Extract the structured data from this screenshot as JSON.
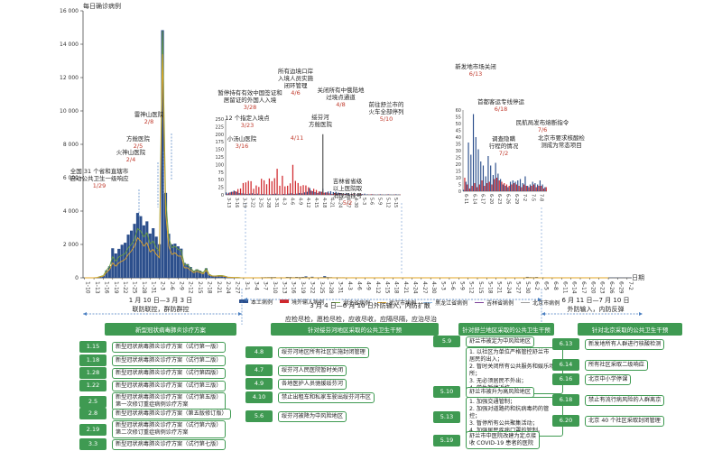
{
  "chart_data": [
    {
      "type": "bar",
      "ylabel": "每日确诊病例",
      "xlabel": "日期",
      "ylim": [
        0,
        16000
      ],
      "yticks": [
        "0",
        "2 000",
        "4 000",
        "6 000",
        "8 000",
        "10 000",
        "12 000",
        "14 000",
        "16 000"
      ],
      "xticks": [
        "1-10",
        "1-13",
        "1-16",
        "1-19",
        "1-22",
        "1-25",
        "1-28",
        "1-31",
        "2-3",
        "2-6",
        "2-9",
        "2-12",
        "2-15",
        "2-18",
        "2-21",
        "2-24",
        "2-27",
        "3-1",
        "3-4",
        "3-7",
        "3-10",
        "3-13",
        "3-16",
        "3-19",
        "3-22",
        "3-25",
        "3-28",
        "3-31",
        "4-3",
        "4-6",
        "4-9",
        "4-12",
        "4-15",
        "4-18",
        "4-21",
        "4-24",
        "4-27",
        "4-30",
        "5-3",
        "5-6",
        "5-9",
        "5-12",
        "5-15",
        "5-18",
        "5-21",
        "5-24",
        "5-27",
        "5-30",
        "6-2",
        "6-5",
        "6-8",
        "6-11",
        "6-14",
        "6-17",
        "6-20",
        "6-23",
        "6-26",
        "6-29",
        "7-2",
        "7-5",
        "7-8",
        "7-11"
      ],
      "series": [
        {
          "name": "本土病例",
          "color": "#2c4f8c",
          "type": "bar"
        },
        {
          "name": "境外输入病例",
          "color": "#d0272c",
          "type": "bar"
        },
        {
          "name": "湖北省病例",
          "color": "#6a9f3c",
          "type": "line"
        },
        {
          "name": "武汉市病例",
          "color": "#e0a526",
          "type": "line"
        },
        {
          "name": "黑龙江省病例",
          "color": "#8ab7e2",
          "type": "line"
        },
        {
          "name": "吉林省病例",
          "color": "#7b3f98",
          "type": "line"
        },
        {
          "name": "北京市病例",
          "color": "#9c9c9c",
          "type": "line"
        }
      ],
      "national_daily": [
        2,
        0,
        0,
        1,
        17,
        77,
        131,
        444,
        688,
        1771,
        1459,
        1737,
        1981,
        2102,
        2590,
        2829,
        3235,
        3887,
        3694,
        3143,
        3385,
        2652,
        2973,
        2467,
        2015,
        14840,
        5090,
        2641,
        2008,
        2048,
        1886,
        1749,
        891,
        826,
        648,
        409,
        508,
        427,
        327,
        573,
        202,
        125,
        119,
        139,
        143,
        99,
        44,
        40,
        19,
        24,
        15,
        8,
        11,
        20,
        16,
        21,
        13,
        34,
        39,
        41,
        46,
        45,
        20,
        31,
        26,
        53,
        48,
        35,
        54,
        45,
        55,
        86,
        30,
        63,
        28,
        30,
        38,
        99,
        46,
        39,
        29,
        32,
        31,
        31,
        27,
        17,
        28,
        15,
        11,
        20,
        16,
        12,
        11,
        3,
        6,
        4,
        6,
        12,
        6,
        2,
        3,
        1,
        4,
        5,
        3,
        2,
        6,
        3,
        2,
        4,
        11,
        7,
        16,
        16,
        4,
        2,
        1,
        2,
        3,
        0,
        3,
        7,
        4,
        5,
        2,
        4,
        3,
        5,
        2,
        3,
        5,
        4,
        1,
        5,
        1,
        3,
        1,
        1,
        2,
        1,
        3,
        8,
        57,
        40,
        36,
        49,
        25,
        31,
        22,
        19,
        11,
        26,
        19,
        12,
        23,
        13,
        9,
        5,
        4,
        3,
        7,
        8,
        7,
        8,
        10,
        8,
        11,
        4,
        5,
        10,
        7,
        6,
        8,
        5,
        4,
        7
      ],
      "hubei_daily": [
        2,
        0,
        0,
        1,
        17,
        77,
        131,
        444,
        688,
        1260,
        1000,
        1250,
        1350,
        1450,
        1800,
        2000,
        2300,
        2950,
        2800,
        2450,
        2700,
        2050,
        2200,
        1800,
        1600,
        14800,
        4800,
        2400,
        1800,
        1900,
        1700,
        1650,
        800,
        780,
        600,
        390,
        490,
        410,
        310,
        560,
        195,
        120,
        115,
        134,
        137,
        95,
        40,
        35,
        15,
        20,
        10,
        5,
        2,
        3,
        1,
        1,
        0,
        1,
        0,
        0,
        0,
        0,
        0,
        0,
        0,
        0,
        0,
        0,
        0,
        0,
        0,
        0,
        0,
        0,
        0,
        0,
        0,
        0,
        0,
        0,
        0,
        0,
        0,
        0,
        0,
        0,
        0,
        0,
        0,
        0,
        0,
        0,
        0,
        0,
        0,
        0,
        0,
        0,
        0,
        0,
        0,
        0,
        0,
        0,
        0,
        0,
        0,
        0,
        0,
        0,
        0,
        0,
        0,
        0,
        0,
        0,
        0,
        0,
        0,
        0,
        0,
        0,
        0,
        0,
        0,
        0,
        0,
        0,
        0,
        0,
        0,
        0,
        0,
        0,
        0,
        0,
        0,
        0,
        0,
        0,
        0,
        0,
        0,
        0,
        0,
        0,
        0,
        0,
        0,
        0,
        0,
        0,
        0,
        0,
        0,
        0,
        0,
        0,
        0,
        0,
        0,
        0,
        0,
        0,
        0,
        0,
        0,
        0,
        0
      ],
      "wuhan_daily": [
        2,
        0,
        0,
        1,
        17,
        60,
        100,
        320,
        500,
        900,
        700,
        900,
        1000,
        1100,
        1400,
        1600,
        1900,
        2400,
        2200,
        1900,
        2100,
        1550,
        1700,
        1400,
        1200,
        13400,
        3900,
        1900,
        1400,
        1500,
        1300,
        1300,
        600,
        600,
        450,
        300,
        390,
        320,
        240,
        450,
        160,
        100,
        95,
        110,
        115,
        80,
        35,
        30,
        12,
        17,
        8,
        4,
        2,
        3,
        1,
        1,
        0,
        1,
        0,
        0,
        0,
        0,
        0,
        0,
        0,
        0,
        0,
        0,
        0,
        0,
        0,
        0,
        0,
        0,
        0,
        0,
        0,
        0,
        0,
        0,
        0,
        0,
        0,
        0,
        0,
        0,
        0,
        0,
        0,
        0,
        0,
        0,
        0,
        0,
        0,
        0,
        0,
        0,
        0,
        0,
        0,
        0,
        0,
        0,
        0,
        0,
        0,
        0,
        0,
        0,
        0,
        0,
        0,
        0,
        0,
        0,
        0,
        0,
        0,
        0,
        0,
        0,
        0,
        0,
        0,
        0,
        0,
        0,
        0,
        0,
        0,
        0,
        0,
        0,
        0,
        0,
        0,
        0,
        0,
        0,
        0,
        0,
        0,
        0,
        0,
        0,
        0,
        0,
        0,
        0,
        0,
        0,
        0,
        0,
        0,
        0,
        0,
        0,
        0,
        0,
        0,
        0,
        0,
        0,
        0,
        0,
        0,
        0,
        0
      ]
    },
    {
      "type": "bar",
      "title": "inset-march-may",
      "yticks": [
        "0",
        "25",
        "50",
        "75",
        "100",
        "125",
        "150",
        "175",
        "200",
        "225",
        "250"
      ],
      "ylim": [
        0,
        250
      ],
      "xticks": [
        "3-13",
        "3-16",
        "3-19",
        "3-22",
        "3-25",
        "3-28",
        "3-31",
        "4-3",
        "4-6",
        "4-9",
        "4-12",
        "4-15",
        "4-18",
        "4-21",
        "4-24",
        "4-27",
        "4-30",
        "5-3",
        "5-6",
        "5-9",
        "5-12",
        "5-15"
      ],
      "local": [
        8,
        7,
        10,
        14,
        10,
        6,
        5,
        4,
        3,
        4,
        5,
        3,
        4,
        2,
        3,
        2,
        1,
        2,
        3,
        4,
        2,
        1,
        3,
        2,
        4,
        5,
        3,
        4,
        6,
        5,
        8,
        10,
        22,
        12,
        9,
        6,
        11,
        20,
        8,
        11,
        12,
        9,
        10,
        7,
        6,
        4,
        5,
        3,
        2,
        3,
        2,
        1,
        3,
        4,
        2,
        1,
        2,
        1,
        1,
        2,
        1,
        1,
        2,
        1,
        1,
        2,
        1
      ],
      "imported": [
        4,
        8,
        10,
        12,
        19,
        21,
        39,
        41,
        46,
        45,
        20,
        31,
        26,
        53,
        48,
        35,
        54,
        45,
        55,
        86,
        30,
        63,
        28,
        30,
        38,
        99,
        46,
        39,
        29,
        32,
        31,
        25,
        14,
        20,
        16,
        11,
        10,
        7,
        8,
        5,
        3,
        6,
        4,
        5,
        2,
        3,
        2,
        1,
        2,
        1,
        1,
        2,
        1,
        0,
        1,
        2,
        1,
        0,
        1,
        1,
        0,
        1,
        1,
        0,
        1,
        0,
        1
      ],
      "spike_value": 200,
      "spike_index": 37
    },
    {
      "type": "bar",
      "title": "inset-june-july",
      "yticks": [
        "0",
        "5",
        "10",
        "15",
        "20",
        "25",
        "30",
        "35",
        "40",
        "45",
        "50",
        "55",
        "60"
      ],
      "ylim": [
        0,
        60
      ],
      "xticks": [
        "6-11",
        "6-14",
        "6-17",
        "6-20",
        "6-23",
        "6-26",
        "6-29",
        "7-2",
        "7-5",
        "7-8"
      ],
      "local": [
        1,
        7,
        36,
        27,
        57,
        40,
        31,
        22,
        19,
        11,
        26,
        19,
        12,
        21,
        13,
        9,
        5,
        4,
        3,
        7,
        8,
        7,
        8,
        9,
        6,
        11,
        4,
        5,
        7,
        6,
        5,
        8,
        5,
        3
      ],
      "imported": [
        10,
        5,
        2,
        4,
        6,
        3,
        5,
        8,
        4,
        6,
        7,
        5,
        9,
        10,
        8,
        7,
        6,
        5,
        4,
        5,
        6,
        5,
        4,
        3,
        5,
        4,
        3,
        4,
        5,
        3,
        4,
        4,
        2,
        3
      ]
    }
  ],
  "annotations_main": [
    {
      "text": "全国 31 个省和直辖市\n启动公共卫生一级响应",
      "date": "1/29"
    },
    {
      "text": "火神山医院",
      "date": "2/4"
    },
    {
      "text": "方舱医院",
      "date": "2/5"
    },
    {
      "text": "雷神山医院",
      "date": "2/8"
    }
  ],
  "annotations_inset1": [
    {
      "text": "小汤山医院",
      "date": "3/16"
    },
    {
      "text": "12 个指定入境点",
      "date": "3/23"
    },
    {
      "text": "暂停持有有效中国签证和\n居留证的外国人入境",
      "date": "3/28"
    },
    {
      "text": "所有边境口岸\n入境人员实施\n闭环管理",
      "date": "4/6"
    },
    {
      "text": "关闭所有中俄陆地\n过境点通道",
      "date": "4/8"
    },
    {
      "text": "",
      "date": "4/11"
    },
    {
      "text": "绥芬河\n方舱医院",
      "date": ""
    },
    {
      "text": "吉林省省级\n以上医院取\n消现场挂号",
      "date": "5/2"
    },
    {
      "text": "前往舒兰市的\n火车全部停列",
      "date": "5/10"
    }
  ],
  "annotations_inset2": [
    {
      "text": "新发地市场关闭",
      "date": "6/13"
    },
    {
      "text": "首都客运专线停运",
      "date": "6/18"
    },
    {
      "text": "调查隐瞒\n行程的情况",
      "date": "7/2"
    },
    {
      "text": "民航局发布熔断指令",
      "date": "7/6"
    },
    {
      "text": "北京市要求核酸检\n测成为常态项目",
      "date": ""
    }
  ],
  "legend": [
    "本土病例",
    "境外输入病例",
    "湖北省病例",
    "武汉市病例",
    "黑龙江省病例",
    "吉林省病例",
    "北京市病例"
  ],
  "periods": [
    {
      "range": "1 月 10 日—3 月 3 日",
      "desc": "联防联控，群防群控"
    },
    {
      "range": "3 月 4 日—6 月 10 日外防输入，内防扩散",
      "desc": ""
    },
    {
      "range": "6 月 11 日—7 月 10 日",
      "desc": "外防输入，内防反弹"
    }
  ],
  "mid_text": "应检尽检，愿检尽检，应收尽收，应隔尽隔，应治尽治",
  "columns": [
    {
      "header": "新型冠状病毒肺炎诊疗方案",
      "rows": [
        {
          "date": "1.15",
          "text": "新型冠状病毒肺炎诊疗方案（试行第一版）"
        },
        {
          "date": "1.18",
          "text": "新型冠状病毒肺炎诊疗方案（试行第二版）"
        },
        {
          "date": "1.28",
          "text": "新型冠状病毒肺炎诊疗方案（试行第四版）"
        },
        {
          "date": "1.22",
          "text": "新型冠状病毒肺炎诊疗方案（试行第三版）"
        },
        {
          "date": "2.5",
          "text": "新型冠状病毒肺炎诊疗方案（试行第五版）\n第一次修订重症病例诊疗方案"
        },
        {
          "date": "2.8",
          "text": "新型冠状病毒肺炎诊疗方案（第五版修订版）"
        },
        {
          "date": "2.19",
          "text": "新型冠状病毒肺炎诊疗方案（试行第六版）\n第二次修订重症病例诊疗方案"
        },
        {
          "date": "3.3",
          "text": "新型冠状病毒肺炎诊疗方案（试行第七版）"
        }
      ]
    },
    {
      "header": "针对绥芬河地区采取的公共卫生干预",
      "rows": [
        {
          "date": "4.8",
          "text": "绥芬河地区所有社区实施封闭管理"
        },
        {
          "date": "4.7",
          "text": "绥芬河人民医院暂时关闭"
        },
        {
          "date": "4.9",
          "text": "各地医护人员驰援绥芬河"
        },
        {
          "date": "4.10",
          "text": "禁止出租车和私家车驶出绥芬河市区"
        },
        {
          "date": "5.6",
          "text": "绥芬河被降为中风险地区"
        }
      ]
    },
    {
      "header": "针对舒兰地区采取的公共卫生干预",
      "rows": [
        {
          "date": "5.9",
          "text": "舒兰市被定为中风险地区"
        },
        {
          "date": "",
          "text": "1. 以社区为单位严格管控舒兰市\n居民的出入；\n2. 暂时关闭所有公共服务和娱乐场所；\n3. 无必须居民不外出；\n4. 学生暂停返校。"
        },
        {
          "date": "5.10",
          "text": "舒兰市被升为高风险地区"
        },
        {
          "date": "5.13",
          "text": "1. 加强交通管制；\n2. 加强对道路药和抗病毒药的管控；\n3. 暂停所有公共聚集活动；\n4. 加强居民疾病口罩的管制。"
        },
        {
          "date": "5.19",
          "text": "舒兰市中医院改建为定点接\n收 COVID-19 患者的医院"
        }
      ]
    },
    {
      "header": "针对北京采取的公共卫生干预",
      "rows": [
        {
          "date": "6.13",
          "text": "新发地所有人群进行核酸检测"
        },
        {
          "date": "6.14",
          "text": "所有社区采取二级响应"
        },
        {
          "date": "6.16",
          "text": "北京中小学停课"
        },
        {
          "date": "6.18",
          "text": "禁止有流行病风险的人群离京"
        },
        {
          "date": "6.20",
          "text": "北京 40 个社区采取封闭管理"
        }
      ]
    }
  ]
}
